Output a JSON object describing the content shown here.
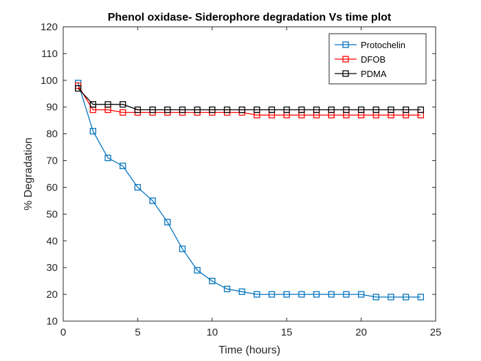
{
  "chart_data": {
    "type": "line",
    "title": "Phenol oxidase- Siderophore degradation Vs time plot",
    "xlabel": "Time (hours)",
    "ylabel": "% Degradation",
    "xlim": [
      0,
      25
    ],
    "ylim": [
      10,
      120
    ],
    "xticks": [
      0,
      5,
      10,
      15,
      20,
      25
    ],
    "yticks": [
      10,
      20,
      30,
      40,
      50,
      60,
      70,
      80,
      90,
      100,
      110,
      120
    ],
    "grid": false,
    "legend_position": "top-right",
    "marker": "square",
    "x": [
      1,
      2,
      3,
      4,
      5,
      6,
      7,
      8,
      9,
      10,
      11,
      12,
      13,
      14,
      15,
      16,
      17,
      18,
      19,
      20,
      21,
      22,
      23,
      24
    ],
    "series": [
      {
        "name": "Protochelin",
        "color": "#0072bd",
        "values": [
          99,
          81,
          71,
          68,
          60,
          55,
          47,
          37,
          29,
          25,
          22,
          21,
          20,
          20,
          20,
          20,
          20,
          20,
          20,
          20,
          19,
          19,
          19,
          19
        ]
      },
      {
        "name": "DFOB",
        "color": "#ff0000",
        "values": [
          98,
          89,
          89,
          88,
          88,
          88,
          88,
          88,
          88,
          88,
          88,
          88,
          87,
          87,
          87,
          87,
          87,
          87,
          87,
          87,
          87,
          87,
          87,
          87
        ]
      },
      {
        "name": "PDMA",
        "color": "#000000",
        "values": [
          97,
          91,
          91,
          91,
          89,
          89,
          89,
          89,
          89,
          89,
          89,
          89,
          89,
          89,
          89,
          89,
          89,
          89,
          89,
          89,
          89,
          89,
          89,
          89
        ]
      }
    ]
  }
}
